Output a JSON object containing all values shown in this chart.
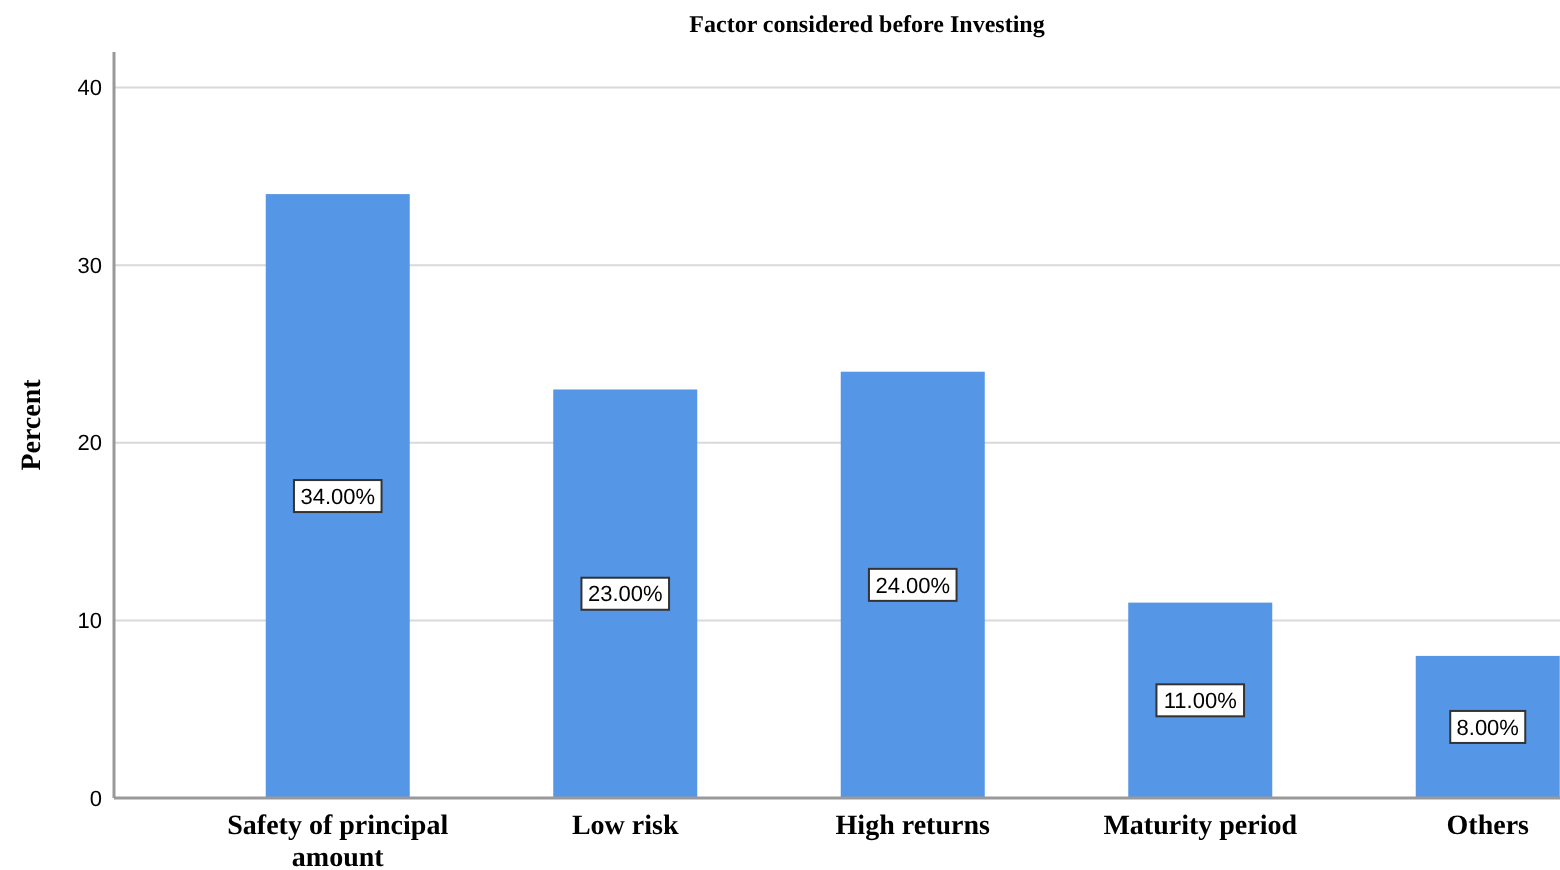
{
  "chart_data": {
    "type": "bar",
    "title": "Factor considered before Investing",
    "ylabel": "Percent",
    "categories": [
      "Safety of principal amount",
      "Low risk",
      "High returns",
      "Maturity period",
      "Others"
    ],
    "values": [
      34,
      23,
      24,
      11,
      8
    ],
    "color": "#5596e6",
    "value_labels": [
      "34.00%",
      "23.00%",
      "24.00%",
      "11.00%",
      "8.00%"
    ],
    "ylim": [
      0,
      42
    ],
    "yticks": [
      0,
      10,
      20,
      30,
      40
    ],
    "grid": "y"
  }
}
